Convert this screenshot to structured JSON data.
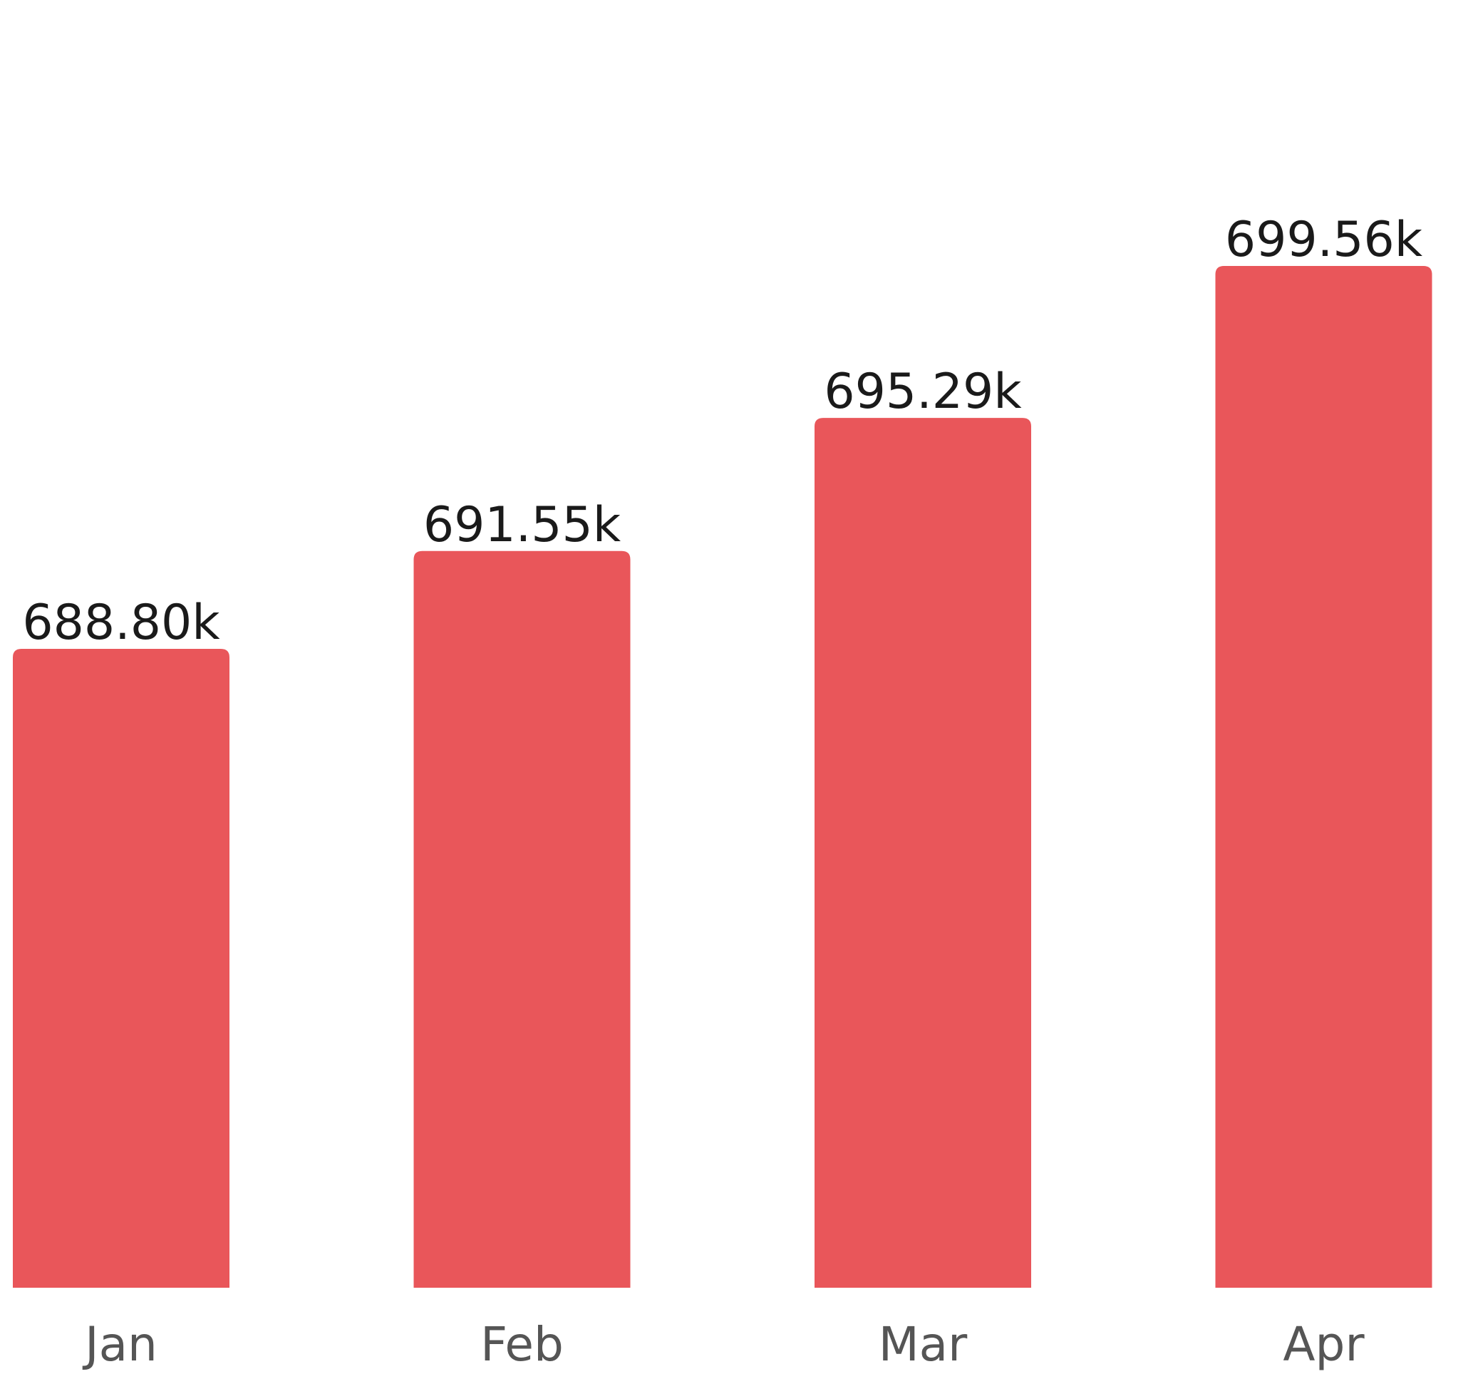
{
  "chart_data": {
    "type": "bar",
    "categories": [
      "Jan",
      "Feb",
      "Mar",
      "Apr"
    ],
    "values": [
      688800,
      691550,
      695290,
      699560
    ],
    "labels": [
      "688.80k",
      "691.55k",
      "695.29k",
      "699.56k"
    ],
    "xlabel": "",
    "ylabel": "",
    "ylim": [
      0,
      730000
    ],
    "grid": false,
    "bar_color": "#E9565A"
  }
}
